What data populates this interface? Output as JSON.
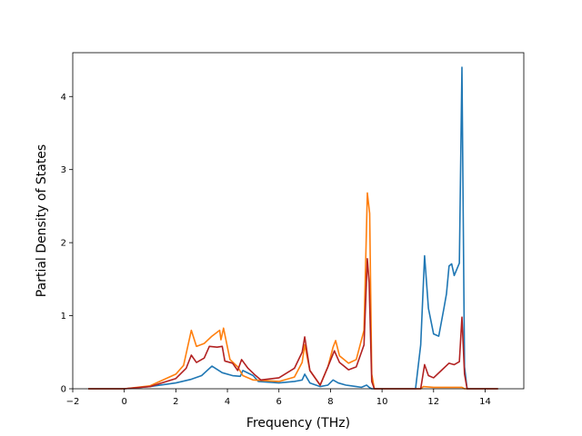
{
  "chart_data": {
    "type": "line",
    "title": "",
    "xlabel": "Frequency (THz)",
    "ylabel": "Partial Density of States",
    "xlim": [
      -2.0,
      15.5
    ],
    "ylim": [
      0,
      4.6
    ],
    "xticks": [
      -2,
      0,
      2,
      4,
      6,
      8,
      10,
      12,
      14
    ],
    "xtick_labels": [
      "−2",
      "0",
      "2",
      "4",
      "6",
      "8",
      "10",
      "12",
      "14"
    ],
    "yticks": [
      0,
      1,
      2,
      3,
      4
    ],
    "ytick_labels": [
      "0",
      "1",
      "2",
      "3",
      "4"
    ],
    "grid": false,
    "legend": "none",
    "series": [
      {
        "color": "#1f77b4",
        "points": [
          [
            -1.4,
            0
          ],
          [
            0,
            0
          ],
          [
            1,
            0.03
          ],
          [
            2,
            0.08
          ],
          [
            2.6,
            0.13
          ],
          [
            3,
            0.18
          ],
          [
            3.4,
            0.31
          ],
          [
            3.8,
            0.22
          ],
          [
            4.2,
            0.18
          ],
          [
            4.5,
            0.17
          ],
          [
            4.6,
            0.25
          ],
          [
            5,
            0.18
          ],
          [
            5.2,
            0.1
          ],
          [
            6,
            0.08
          ],
          [
            6.6,
            0.1
          ],
          [
            6.9,
            0.12
          ],
          [
            7,
            0.2
          ],
          [
            7.2,
            0.08
          ],
          [
            7.6,
            0.03
          ],
          [
            7.9,
            0.05
          ],
          [
            8.1,
            0.12
          ],
          [
            8.3,
            0.08
          ],
          [
            8.6,
            0.05
          ],
          [
            9,
            0.03
          ],
          [
            9.2,
            0.02
          ],
          [
            9.4,
            0.05
          ],
          [
            9.5,
            0.02
          ],
          [
            9.6,
            0
          ],
          [
            11.3,
            0
          ],
          [
            11.5,
            0.6
          ],
          [
            11.65,
            1.82
          ],
          [
            11.8,
            1.1
          ],
          [
            12,
            0.75
          ],
          [
            12.2,
            0.72
          ],
          [
            12.4,
            1.1
          ],
          [
            12.5,
            1.3
          ],
          [
            12.6,
            1.68
          ],
          [
            12.7,
            1.71
          ],
          [
            12.8,
            1.55
          ],
          [
            13,
            1.72
          ],
          [
            13.1,
            4.4
          ],
          [
            13.2,
            0.3
          ],
          [
            13.3,
            0
          ],
          [
            14.5,
            0
          ]
        ]
      },
      {
        "color": "#ff7f0e",
        "points": [
          [
            -1.4,
            0
          ],
          [
            0,
            0
          ],
          [
            1,
            0.04
          ],
          [
            2,
            0.2
          ],
          [
            2.3,
            0.32
          ],
          [
            2.6,
            0.8
          ],
          [
            2.8,
            0.58
          ],
          [
            3.1,
            0.62
          ],
          [
            3.4,
            0.72
          ],
          [
            3.7,
            0.8
          ],
          [
            3.75,
            0.67
          ],
          [
            3.85,
            0.83
          ],
          [
            4.1,
            0.4
          ],
          [
            4.4,
            0.3
          ],
          [
            4.6,
            0.18
          ],
          [
            5,
            0.12
          ],
          [
            6,
            0.1
          ],
          [
            6.6,
            0.16
          ],
          [
            6.9,
            0.36
          ],
          [
            7,
            0.6
          ],
          [
            7.2,
            0.25
          ],
          [
            7.6,
            0.05
          ],
          [
            7.9,
            0.3
          ],
          [
            8.1,
            0.57
          ],
          [
            8.2,
            0.66
          ],
          [
            8.35,
            0.45
          ],
          [
            8.7,
            0.35
          ],
          [
            9,
            0.4
          ],
          [
            9.3,
            0.8
          ],
          [
            9.43,
            2.68
          ],
          [
            9.52,
            2.4
          ],
          [
            9.6,
            0.2
          ],
          [
            9.7,
            0
          ],
          [
            11.5,
            0
          ],
          [
            11.6,
            0.03
          ],
          [
            12,
            0.02
          ],
          [
            13.1,
            0.02
          ],
          [
            13.2,
            0
          ],
          [
            14.5,
            0
          ]
        ]
      },
      {
        "color": "#b22222",
        "points": [
          [
            -1.4,
            0
          ],
          [
            0,
            0
          ],
          [
            1,
            0.03
          ],
          [
            2,
            0.14
          ],
          [
            2.4,
            0.28
          ],
          [
            2.6,
            0.46
          ],
          [
            2.8,
            0.36
          ],
          [
            3.1,
            0.42
          ],
          [
            3.3,
            0.58
          ],
          [
            3.6,
            0.57
          ],
          [
            3.8,
            0.58
          ],
          [
            3.9,
            0.38
          ],
          [
            4.2,
            0.35
          ],
          [
            4.4,
            0.25
          ],
          [
            4.55,
            0.4
          ],
          [
            4.8,
            0.28
          ],
          [
            5.1,
            0.18
          ],
          [
            5.3,
            0.12
          ],
          [
            6,
            0.15
          ],
          [
            6.6,
            0.28
          ],
          [
            6.9,
            0.5
          ],
          [
            7,
            0.71
          ],
          [
            7.2,
            0.25
          ],
          [
            7.6,
            0.05
          ],
          [
            7.9,
            0.3
          ],
          [
            8.15,
            0.52
          ],
          [
            8.35,
            0.36
          ],
          [
            8.7,
            0.26
          ],
          [
            9,
            0.3
          ],
          [
            9.3,
            0.6
          ],
          [
            9.43,
            1.78
          ],
          [
            9.5,
            1.45
          ],
          [
            9.6,
            0.1
          ],
          [
            9.7,
            0
          ],
          [
            11.5,
            0
          ],
          [
            11.65,
            0.33
          ],
          [
            11.8,
            0.18
          ],
          [
            12,
            0.15
          ],
          [
            12.3,
            0.25
          ],
          [
            12.6,
            0.35
          ],
          [
            12.8,
            0.33
          ],
          [
            13,
            0.37
          ],
          [
            13.1,
            0.98
          ],
          [
            13.2,
            0.2
          ],
          [
            13.3,
            0
          ],
          [
            14.5,
            0
          ]
        ]
      }
    ]
  }
}
